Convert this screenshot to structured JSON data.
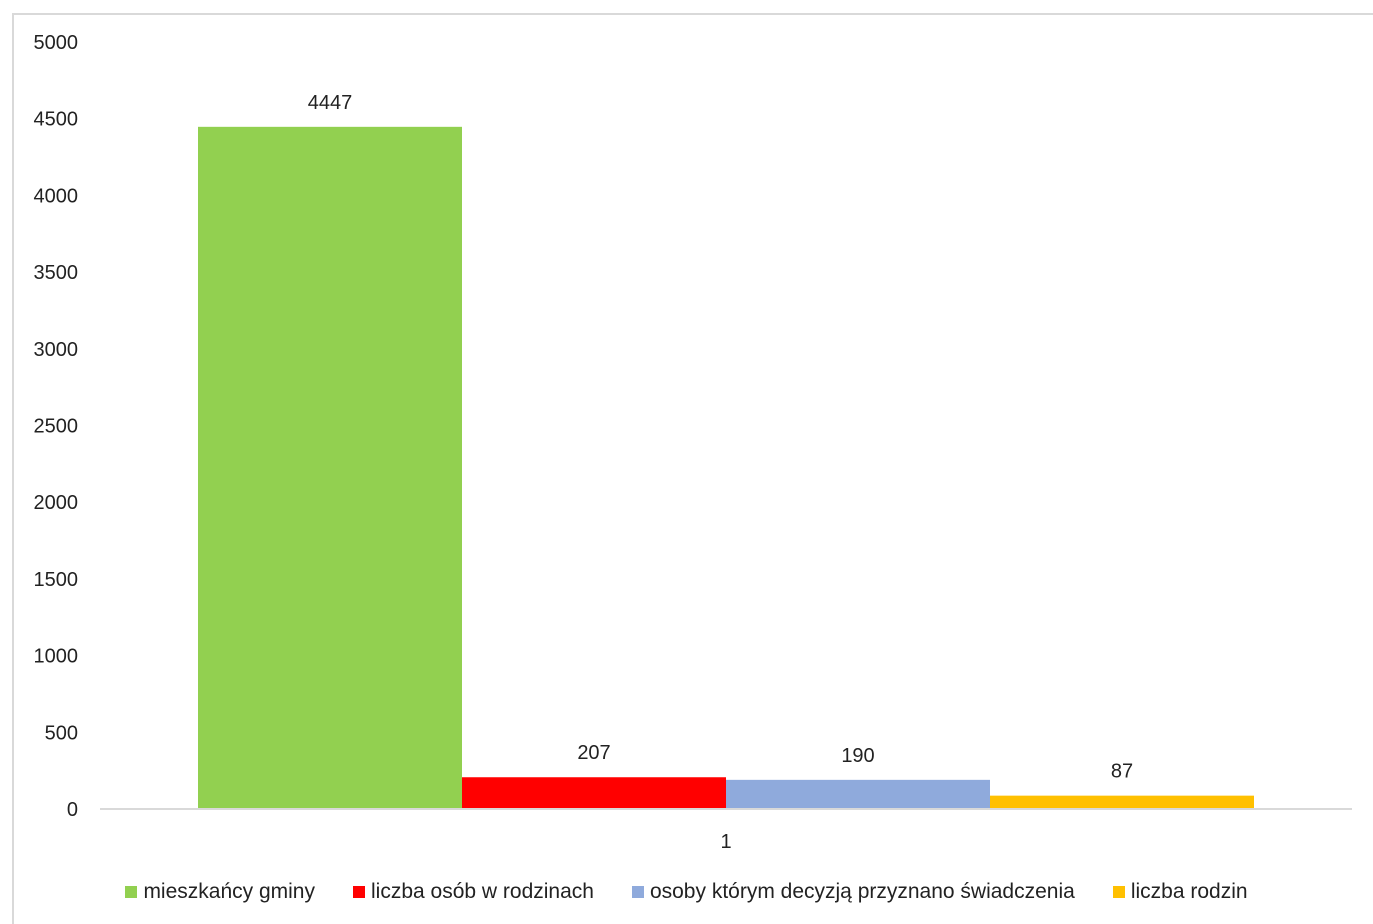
{
  "chart_data": {
    "type": "bar",
    "categories": [
      "1"
    ],
    "series": [
      {
        "name": "mieszkańcy gminy",
        "values": [
          4447
        ],
        "color": "#92d050"
      },
      {
        "name": "liczba osób w rodzinach",
        "values": [
          207
        ],
        "color": "#ff0000"
      },
      {
        "name": "osoby którym decyzją przyznano świadczenia",
        "values": [
          190
        ],
        "color": "#8faadc"
      },
      {
        "name": "liczba rodzin",
        "values": [
          87
        ],
        "color": "#ffc000"
      }
    ],
    "ylim": [
      0,
      5000
    ],
    "yticks": [
      0,
      500,
      1000,
      1500,
      2000,
      2500,
      3000,
      3500,
      4000,
      4500,
      5000
    ],
    "grid": false,
    "legend_position": "bottom",
    "data_labels": true
  }
}
